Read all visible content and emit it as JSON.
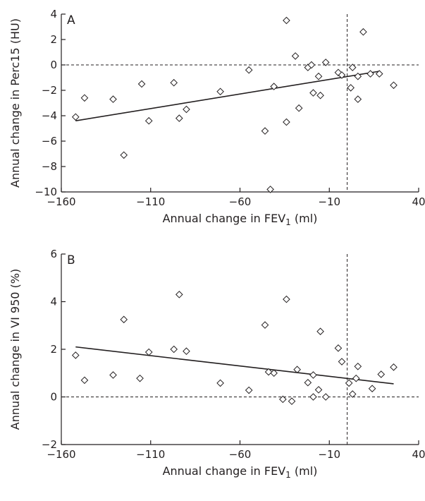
{
  "chart_data": [
    {
      "type": "scatter",
      "panel_label": "A",
      "xlabel": "Annual change in FEV",
      "xlabel_subscript": "1",
      "xlabel_suffix": " (ml)",
      "ylabel": "Annual change in Perc15 (HU)",
      "xlim": [
        -160,
        40
      ],
      "ylim": [
        -10,
        4
      ],
      "xticks": [
        -160,
        -110,
        -60,
        -10,
        40
      ],
      "yticks": [
        -10,
        -8,
        -6,
        -4,
        -2,
        0,
        2,
        4
      ],
      "x_reference": 0,
      "y_reference": 0,
      "trend_line": {
        "x": [
          -152,
          18
        ],
        "y": [
          -4.4,
          -0.5
        ]
      },
      "series": [
        {
          "marker": "diamond",
          "points": [
            {
              "x": -152,
              "y": -4.1
            },
            {
              "x": -147,
              "y": -2.6
            },
            {
              "x": -131,
              "y": -2.7
            },
            {
              "x": -125,
              "y": -7.1
            },
            {
              "x": -115,
              "y": -1.5
            },
            {
              "x": -111,
              "y": -4.4
            },
            {
              "x": -97,
              "y": -1.4
            },
            {
              "x": -94,
              "y": -4.2
            },
            {
              "x": -90,
              "y": -3.5
            },
            {
              "x": -71,
              "y": -2.1
            },
            {
              "x": -55,
              "y": -0.4
            },
            {
              "x": -46,
              "y": -5.2
            },
            {
              "x": -43,
              "y": -9.8
            },
            {
              "x": -41,
              "y": -1.7
            },
            {
              "x": -34,
              "y": 3.5
            },
            {
              "x": -34,
              "y": -4.5
            },
            {
              "x": -29,
              "y": 0.7
            },
            {
              "x": -27,
              "y": -3.4
            },
            {
              "x": -22,
              "y": -0.2
            },
            {
              "x": -20,
              "y": 0.0
            },
            {
              "x": -19,
              "y": -2.2
            },
            {
              "x": -16,
              "y": -0.9
            },
            {
              "x": -15,
              "y": -2.4
            },
            {
              "x": -12,
              "y": 0.2
            },
            {
              "x": -5,
              "y": -0.6
            },
            {
              "x": -3,
              "y": -0.8
            },
            {
              "x": 2,
              "y": -1.8
            },
            {
              "x": 3,
              "y": -0.2
            },
            {
              "x": 6,
              "y": -2.7
            },
            {
              "x": 6,
              "y": -0.9
            },
            {
              "x": 9,
              "y": 2.6
            },
            {
              "x": 13,
              "y": -0.7
            },
            {
              "x": 18,
              "y": -0.7
            },
            {
              "x": 26,
              "y": -1.6
            }
          ]
        }
      ]
    },
    {
      "type": "scatter",
      "panel_label": "B",
      "xlabel": "Annual change in FEV",
      "xlabel_subscript": "1",
      "xlabel_suffix": " (ml)",
      "ylabel": "Annual change in VI 950 (%)",
      "xlim": [
        -160,
        40
      ],
      "ylim": [
        -2,
        6
      ],
      "xticks": [
        -160,
        -110,
        -60,
        -10,
        40
      ],
      "yticks": [
        -2,
        0,
        2,
        4,
        6
      ],
      "x_reference": 0,
      "y_reference": 0,
      "trend_line": {
        "x": [
          -152,
          26
        ],
        "y": [
          2.1,
          0.55
        ]
      },
      "series": [
        {
          "marker": "diamond",
          "points": [
            {
              "x": -152,
              "y": 1.75
            },
            {
              "x": -147,
              "y": 0.7
            },
            {
              "x": -131,
              "y": 0.92
            },
            {
              "x": -125,
              "y": 3.25
            },
            {
              "x": -116,
              "y": 0.78
            },
            {
              "x": -111,
              "y": 1.88
            },
            {
              "x": -97,
              "y": 2.0
            },
            {
              "x": -94,
              "y": 4.3
            },
            {
              "x": -90,
              "y": 1.92
            },
            {
              "x": -71,
              "y": 0.58
            },
            {
              "x": -55,
              "y": 0.28
            },
            {
              "x": -46,
              "y": 3.02
            },
            {
              "x": -44,
              "y": 1.05
            },
            {
              "x": -41,
              "y": 1.0
            },
            {
              "x": -36,
              "y": -0.1
            },
            {
              "x": -34,
              "y": 4.1
            },
            {
              "x": -31,
              "y": -0.18
            },
            {
              "x": -28,
              "y": 1.15
            },
            {
              "x": -22,
              "y": 0.6
            },
            {
              "x": -19,
              "y": 0.92
            },
            {
              "x": -19,
              "y": 0.0
            },
            {
              "x": -16,
              "y": 0.3
            },
            {
              "x": -15,
              "y": 2.75
            },
            {
              "x": -12,
              "y": 0.0
            },
            {
              "x": -5,
              "y": 2.05
            },
            {
              "x": -3,
              "y": 1.48
            },
            {
              "x": 1,
              "y": 0.58
            },
            {
              "x": 3,
              "y": 0.12
            },
            {
              "x": 5,
              "y": 0.78
            },
            {
              "x": 6,
              "y": 1.28
            },
            {
              "x": 14,
              "y": 0.35
            },
            {
              "x": 19,
              "y": 0.95
            },
            {
              "x": 26,
              "y": 1.25
            }
          ]
        }
      ]
    }
  ]
}
